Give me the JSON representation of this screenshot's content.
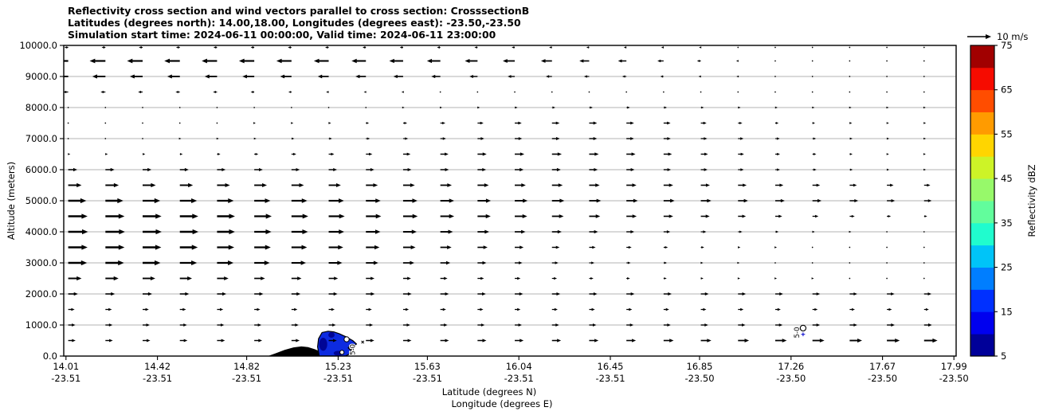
{
  "figure": {
    "title_line1": "Reflectivity cross section and wind vectors parallel to cross section: CrosssectionB",
    "title_line2": "Latitudes (degrees north): 14.00,18.00, Longitudes (degrees east): -23.50,-23.50",
    "title_line3": "Simulation start time: 2024-06-11 00:00:00, Valid time: 2024-06-11 23:00:00"
  },
  "chart_data": {
    "type": "quiver-cross-section",
    "title": "Reflectivity cross section and wind vectors parallel to cross section: CrosssectionB",
    "x_axis": {
      "label_line1": "Latitude (degrees N)",
      "label_line2": "Longitude (degrees E)",
      "lat_range": [
        14.0,
        18.0
      ],
      "ticks": [
        {
          "lat": "14.01",
          "lon": "-23.51"
        },
        {
          "lat": "14.42",
          "lon": "-23.51"
        },
        {
          "lat": "14.82",
          "lon": "-23.51"
        },
        {
          "lat": "15.23",
          "lon": "-23.51"
        },
        {
          "lat": "15.63",
          "lon": "-23.51"
        },
        {
          "lat": "16.04",
          "lon": "-23.51"
        },
        {
          "lat": "16.45",
          "lon": "-23.51"
        },
        {
          "lat": "16.85",
          "lon": "-23.50"
        },
        {
          "lat": "17.26",
          "lon": "-23.50"
        },
        {
          "lat": "17.67",
          "lon": "-23.50"
        },
        {
          "lat": "17.99",
          "lon": "-23.50"
        }
      ]
    },
    "y_axis": {
      "label": "Altitude (meters)",
      "range_m": [
        0,
        10000
      ],
      "tick_labels": [
        "0.0",
        "1000.0",
        "2000.0",
        "3000.0",
        "4000.0",
        "5000.0",
        "6000.0",
        "7000.0",
        "8000.0",
        "9000.0",
        "10000.0"
      ]
    },
    "grid": {
      "horizontal_line_every_m": 1000,
      "color": "#9a9a9a"
    },
    "colorbar": {
      "label": "Reflectivity dBZ",
      "min": 5,
      "max": 75,
      "ticks": [
        5,
        15,
        25,
        35,
        45,
        55,
        65,
        75
      ],
      "segment_colors_bottom_to_top": [
        "#000099",
        "#0000ef",
        "#0030ff",
        "#007eff",
        "#00c4f8",
        "#20fcce",
        "#62fd9c",
        "#97f96a",
        "#cdf327",
        "#ffd500",
        "#ff9b00",
        "#ff4d00",
        "#f60b00",
        "#a10000"
      ]
    },
    "quiver": {
      "key_label": "10 m/s",
      "key_speed_ms": 10,
      "col_lat_start": 14.02,
      "col_lat_step": 0.1668,
      "n_columns": 24,
      "rows": [
        {
          "altitude_m": 10000,
          "u_ms": [
            -1.6,
            -1.6,
            -1.6,
            -1.6,
            -1.5,
            -1.5,
            -1.5,
            -1.5,
            -1.4,
            -1.4,
            -1.4,
            -1.3,
            -1.3,
            -1.2,
            -1.2,
            -1.1,
            -1.0,
            -0.8,
            -0.4,
            -0.3,
            -0.3,
            -0.2,
            -0.2,
            -0.2
          ]
        },
        {
          "altitude_m": 9500,
          "u_ms": [
            -6.6,
            -6.6,
            -6.5,
            -6.5,
            -6.4,
            -6.4,
            -6.3,
            -6.2,
            -6.0,
            -5.8,
            -5.6,
            -5.3,
            -5.0,
            -4.6,
            -4.1,
            -3.5,
            -2.6,
            -1.6,
            -0.8,
            -0.4,
            -0.3,
            -0.3,
            -0.3,
            -0.3
          ]
        },
        {
          "altitude_m": 9000,
          "u_ms": [
            -5.6,
            -5.5,
            -5.4,
            -5.3,
            -5.2,
            -5.0,
            -4.8,
            -4.6,
            -4.4,
            -4.1,
            -3.8,
            -3.4,
            -3.0,
            -2.6,
            -2.2,
            -1.8,
            -1.4,
            -1.0,
            -0.7,
            -0.5,
            -0.4,
            -0.3,
            -0.3,
            -0.2
          ]
        },
        {
          "altitude_m": 8500,
          "u_ms": [
            -2.1,
            -2.0,
            -1.9,
            -1.8,
            -1.7,
            -1.5,
            -1.3,
            -1.1,
            -0.9,
            -0.7,
            -0.5,
            -0.4,
            -0.3,
            -0.3,
            -0.2,
            -0.2,
            -0.2,
            -0.2,
            -0.2,
            -0.3,
            -0.3,
            -0.4,
            -0.4,
            -0.5
          ]
        },
        {
          "altitude_m": 8000,
          "u_ms": [
            -0.4,
            -0.3,
            -0.3,
            -0.2,
            -0.2,
            -0.1,
            0.1,
            0.2,
            0.4,
            0.6,
            0.8,
            1.0,
            1.2,
            1.4,
            1.5,
            1.5,
            1.4,
            1.3,
            1.1,
            1.0,
            0.9,
            0.8,
            0.8,
            0.7
          ]
        },
        {
          "altitude_m": 7500,
          "u_ms": [
            0.3,
            0.3,
            0.4,
            0.4,
            0.5,
            0.6,
            0.8,
            1.0,
            1.3,
            1.7,
            2.1,
            2.5,
            2.9,
            3.2,
            3.3,
            3.2,
            2.9,
            2.4,
            1.8,
            1.4,
            1.1,
            1.0,
            0.9,
            0.8
          ]
        },
        {
          "altitude_m": 7000,
          "u_ms": [
            0.4,
            0.5,
            0.5,
            0.6,
            0.8,
            0.9,
            1.2,
            1.4,
            1.7,
            2.1,
            2.4,
            2.8,
            3.1,
            3.3,
            3.3,
            3.2,
            3.0,
            2.7,
            2.3,
            1.9,
            1.5,
            1.2,
            1.0,
            0.8
          ]
        },
        {
          "altitude_m": 6500,
          "u_ms": [
            0.9,
            1.0,
            1.1,
            1.2,
            1.4,
            1.7,
            2.0,
            2.3,
            2.7,
            3.1,
            3.4,
            3.8,
            4.0,
            4.1,
            4.0,
            3.8,
            3.5,
            3.0,
            2.5,
            2.0,
            1.6,
            1.2,
            0.9,
            0.7
          ]
        },
        {
          "altitude_m": 6000,
          "u_ms": [
            3.8,
            3.8,
            3.7,
            3.7,
            3.6,
            3.6,
            3.5,
            3.5,
            3.5,
            3.5,
            3.6,
            3.6,
            3.7,
            3.7,
            3.6,
            3.4,
            3.1,
            2.8,
            2.4,
            2.0,
            1.7,
            1.3,
            1.0,
            0.8
          ]
        },
        {
          "altitude_m": 5500,
          "u_ms": [
            5.6,
            5.6,
            5.5,
            5.5,
            5.4,
            5.3,
            5.2,
            5.1,
            5.0,
            4.9,
            4.8,
            4.7,
            4.6,
            4.5,
            4.4,
            4.2,
            4.0,
            3.8,
            3.6,
            3.4,
            3.2,
            3.0,
            2.8,
            2.6
          ]
        },
        {
          "altitude_m": 5000,
          "u_ms": [
            7.6,
            7.5,
            7.4,
            7.2,
            7.0,
            6.8,
            6.6,
            6.4,
            6.2,
            6.0,
            5.8,
            5.6,
            5.4,
            5.2,
            5.0,
            4.8,
            4.6,
            4.4,
            4.2,
            4.0,
            3.8,
            3.6,
            3.4,
            3.2
          ]
        },
        {
          "altitude_m": 4500,
          "u_ms": [
            8.1,
            8.0,
            7.9,
            7.7,
            7.5,
            7.3,
            7.0,
            6.7,
            6.4,
            6.1,
            5.8,
            5.5,
            5.2,
            4.9,
            4.6,
            4.3,
            4.0,
            3.7,
            3.3,
            2.9,
            2.5,
            2.1,
            1.7,
            1.3
          ]
        },
        {
          "altitude_m": 4000,
          "u_ms": [
            8.3,
            8.2,
            8.0,
            7.8,
            7.5,
            7.2,
            6.9,
            6.5,
            6.1,
            5.7,
            5.3,
            4.9,
            4.5,
            4.1,
            3.7,
            3.3,
            2.8,
            2.3,
            1.8,
            1.4,
            1.0,
            0.7,
            0.5,
            0.4
          ]
        },
        {
          "altitude_m": 3500,
          "u_ms": [
            8.1,
            8.0,
            7.8,
            7.5,
            7.2,
            6.9,
            6.5,
            6.1,
            5.7,
            5.2,
            4.7,
            4.2,
            3.7,
            3.2,
            2.7,
            2.2,
            1.8,
            1.4,
            1.0,
            0.7,
            0.5,
            0.4,
            0.3,
            0.2
          ]
        },
        {
          "altitude_m": 3000,
          "u_ms": [
            7.9,
            7.8,
            7.5,
            7.2,
            6.9,
            6.5,
            6.1,
            5.7,
            5.2,
            4.7,
            4.2,
            3.7,
            3.2,
            2.7,
            2.2,
            1.8,
            1.4,
            1.0,
            0.7,
            0.5,
            0.4,
            0.3,
            0.2,
            0.2
          ]
        },
        {
          "altitude_m": 2500,
          "u_ms": [
            5.6,
            5.5,
            5.3,
            5.1,
            4.8,
            4.5,
            4.2,
            3.9,
            3.6,
            3.3,
            3.0,
            2.7,
            2.4,
            2.1,
            1.8,
            1.5,
            1.3,
            1.1,
            0.9,
            0.7,
            0.6,
            0.5,
            0.4,
            0.4
          ]
        },
        {
          "altitude_m": 2000,
          "u_ms": [
            4.1,
            4.0,
            4.0,
            3.9,
            3.9,
            3.8,
            3.8,
            3.7,
            3.7,
            3.6,
            3.6,
            3.5,
            3.5,
            3.5,
            3.4,
            3.4,
            3.4,
            3.3,
            3.3,
            3.3,
            3.2,
            3.2,
            3.2,
            3.1
          ]
        },
        {
          "altitude_m": 1500,
          "u_ms": [
            2.7,
            2.7,
            2.6,
            2.6,
            2.6,
            2.5,
            2.5,
            2.5,
            2.5,
            2.4,
            2.4,
            2.4,
            2.4,
            2.4,
            2.4,
            2.4,
            2.3,
            2.3,
            2.3,
            2.3,
            2.2,
            2.2,
            2.1,
            2.0
          ]
        },
        {
          "altitude_m": 1000,
          "u_ms": [
            3.0,
            3.0,
            3.0,
            3.0,
            3.0,
            3.0,
            3.0,
            3.0,
            3.0,
            3.0,
            3.0,
            3.0,
            3.0,
            3.0,
            3.0,
            3.0,
            3.0,
            3.1,
            3.1,
            3.1,
            3.2,
            3.2,
            3.3,
            3.3
          ]
        },
        {
          "altitude_m": 500,
          "u_ms": [
            3.1,
            3.1,
            3.2,
            3.2,
            3.3,
            3.3,
            3.4,
            3.4,
            3.5,
            3.5,
            3.6,
            3.7,
            3.7,
            3.8,
            3.9,
            4.0,
            4.2,
            4.4,
            4.6,
            4.8,
            5.0,
            5.2,
            5.4,
            5.6
          ]
        }
      ]
    },
    "terrain_profile": {
      "color": "#000000",
      "points_lat_alt": [
        [
          14.915,
          0
        ],
        [
          14.95,
          90
        ],
        [
          14.99,
          200
        ],
        [
          15.03,
          280
        ],
        [
          15.065,
          310
        ],
        [
          15.095,
          290
        ],
        [
          15.125,
          220
        ],
        [
          15.155,
          130
        ],
        [
          15.185,
          50
        ],
        [
          15.21,
          0
        ]
      ]
    },
    "reflectivity_feature": {
      "fill": "#0d2be0",
      "core_fill": "#000595",
      "outline_lat_alt": [
        [
          15.145,
          0
        ],
        [
          15.138,
          300
        ],
        [
          15.142,
          560
        ],
        [
          15.158,
          760
        ],
        [
          15.185,
          800
        ],
        [
          15.21,
          780
        ],
        [
          15.235,
          720
        ],
        [
          15.265,
          620
        ],
        [
          15.295,
          500
        ],
        [
          15.312,
          390
        ],
        [
          15.3,
          310
        ],
        [
          15.275,
          265
        ],
        [
          15.288,
          180
        ],
        [
          15.282,
          70
        ],
        [
          15.262,
          0
        ]
      ],
      "core_patches": [
        {
          "lat": 15.163,
          "alt": 380,
          "rlat": 0.018,
          "ralt": 210
        },
        {
          "lat": 15.2,
          "alt": 680,
          "rlat": 0.014,
          "ralt": 90
        },
        {
          "lat": 15.23,
          "alt": 90,
          "rlat": 0.02,
          "ralt": 80
        }
      ],
      "holes": [
        {
          "lat": 15.268,
          "alt": 540,
          "r": 3.2
        },
        {
          "lat": 15.288,
          "alt": 280,
          "r": 2.8
        },
        {
          "lat": 15.247,
          "alt": 120,
          "r": 2.6
        }
      ]
    },
    "contour_labels": [
      {
        "text": "5-0",
        "lat": 15.305,
        "alt": 30
      },
      {
        "text": "5-0",
        "lat": 17.296,
        "alt": 580
      }
    ],
    "secondary_contour": {
      "ring_lat": 17.314,
      "ring_alt": 900,
      "ring_r": 3.6,
      "plus_lat": 17.314,
      "plus_alt": 700,
      "plus_color": "#0000cc"
    },
    "speck": {
      "lat": 15.34,
      "alt": 450
    }
  }
}
